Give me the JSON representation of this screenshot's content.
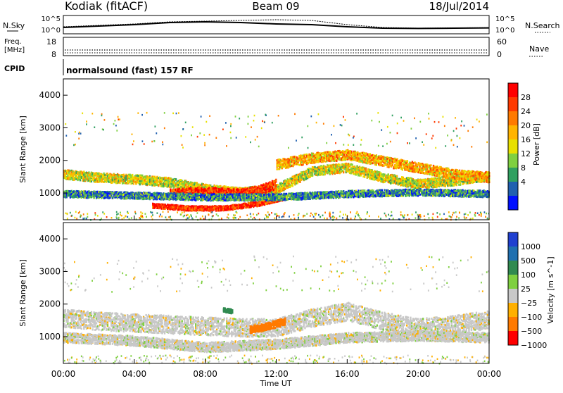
{
  "header": {
    "station": "Kodiak (fitACF)",
    "beam": "Beam 09",
    "date": "18/Jul/2014"
  },
  "noise_panel": {
    "left_label": "N.Sky",
    "right_label": "N.Search",
    "left_ticks": [
      "10^5",
      "10^0"
    ],
    "right_ticks": [
      "10^5",
      "10^0"
    ]
  },
  "freq_panel": {
    "left_label_1": "Freq.",
    "left_label_2": "[MHz]",
    "right_label": "Nave",
    "left_ticks": [
      "18",
      "8"
    ],
    "right_ticks": [
      "60",
      "0"
    ]
  },
  "cpid_panel": {
    "label": "CPID",
    "text": "normalsound (fast) 157 RF"
  },
  "power_panel": {
    "ylabel": "Slant Range [km]",
    "yticks": [
      "4000",
      "3000",
      "2000",
      "1000"
    ],
    "colorbar": {
      "label": "Power [dB]",
      "ticks": [
        "28",
        "24",
        "20",
        "16",
        "12",
        "8",
        "4"
      ],
      "colors": [
        "#ff0000",
        "#ff3a00",
        "#ff7a00",
        "#ffb400",
        "#e8e000",
        "#7fd040",
        "#30a060",
        "#2060b0",
        "#0010ff"
      ]
    }
  },
  "velocity_panel": {
    "ylabel": "Slant Range [km]",
    "yticks": [
      "4000",
      "3000",
      "2000",
      "1000"
    ],
    "colorbar": {
      "label": "Velocity [m s^-1]",
      "ticks": [
        "1000",
        "500",
        "100",
        "25",
        "−25",
        "−100",
        "−500",
        "−1000"
      ],
      "colors": [
        "#2040d0",
        "#2070b0",
        "#308a50",
        "#7fd040",
        "#c8c8c8",
        "#ffb000",
        "#ff7a00",
        "#ff0000"
      ]
    }
  },
  "x_axis": {
    "label": "Time UT",
    "ticks": [
      "00:00",
      "04:00",
      "08:00",
      "12:00",
      "16:00",
      "20:00",
      "00:00"
    ]
  },
  "chart_data": [
    {
      "type": "line",
      "name": "noise",
      "x_range_hours": [
        0,
        24
      ],
      "series": [
        {
          "values_x": [
            0,
            2,
            4,
            6,
            8,
            10,
            12,
            14,
            16,
            18,
            20,
            22,
            24
          ],
          "values_y": [
            0.35,
            0.45,
            0.55,
            0.7,
            0.75,
            0.7,
            0.6,
            0.55,
            0.4,
            0.3,
            0.28,
            0.3,
            0.32
          ]
        },
        {
          "values_x": [
            0,
            2,
            4,
            6,
            8,
            10,
            12,
            14,
            16,
            18,
            20,
            22,
            24
          ],
          "values_y": [
            0.4,
            0.5,
            0.6,
            0.75,
            0.8,
            0.85,
            0.9,
            0.85,
            0.55,
            0.35,
            0.3,
            0.32,
            0.34
          ]
        }
      ]
    },
    {
      "type": "heatmap",
      "name": "power",
      "x_range_hours": [
        0,
        24
      ],
      "y_range_km": [
        180,
        4500
      ],
      "bands": [
        {
          "x": [
            0,
            2,
            4,
            6,
            8,
            10,
            12,
            14,
            16,
            18,
            20,
            22,
            24
          ],
          "y": [
            1600,
            1500,
            1450,
            1350,
            1150,
            1050,
            1150,
            1700,
            1800,
            1500,
            1300,
            1400,
            1550
          ],
          "width": 280,
          "level": 16
        },
        {
          "x": [
            5,
            7,
            9,
            11,
            12.5
          ],
          "y": [
            640,
            560,
            560,
            700,
            900
          ],
          "width": 140,
          "level": 28
        },
        {
          "x": [
            6,
            8,
            10,
            11,
            12
          ],
          "y": [
            1000,
            1050,
            1000,
            1100,
            1300
          ],
          "width": 300,
          "level": 28
        },
        {
          "x": [
            0,
            4,
            8,
            12,
            16,
            20,
            24
          ],
          "y": [
            1000,
            950,
            900,
            900,
            1000,
            1050,
            1000
          ],
          "width": 200,
          "level": 8
        },
        {
          "x": [
            12,
            14,
            16,
            18,
            20,
            22,
            24
          ],
          "y": [
            1900,
            2100,
            2200,
            2000,
            1800,
            1600,
            1500
          ],
          "width": 300,
          "level": 20
        }
      ]
    },
    {
      "type": "heatmap",
      "name": "velocity",
      "x_range_hours": [
        0,
        24
      ],
      "y_range_km": [
        180,
        4500
      ],
      "bands": [
        {
          "x": [
            0,
            2,
            4,
            6,
            8,
            10,
            12,
            14,
            16,
            18,
            20,
            22,
            24
          ],
          "y": [
            1600,
            1500,
            1450,
            1400,
            1350,
            1300,
            1300,
            1600,
            1800,
            1500,
            1300,
            1400,
            1550
          ],
          "width": 550,
          "level": 0
        },
        {
          "x": [
            0,
            4,
            8,
            12,
            16,
            20,
            24
          ],
          "y": [
            1000,
            900,
            700,
            800,
            1000,
            1050,
            1000
          ],
          "width": 300,
          "level": 0
        },
        {
          "x": [
            10.5,
            11.5,
            12.5
          ],
          "y": [
            1250,
            1350,
            1500
          ],
          "width": 220,
          "level": -300
        },
        {
          "x": [
            9,
            9.5
          ],
          "y": [
            1850,
            1800
          ],
          "width": 120,
          "level": 150
        }
      ]
    }
  ]
}
